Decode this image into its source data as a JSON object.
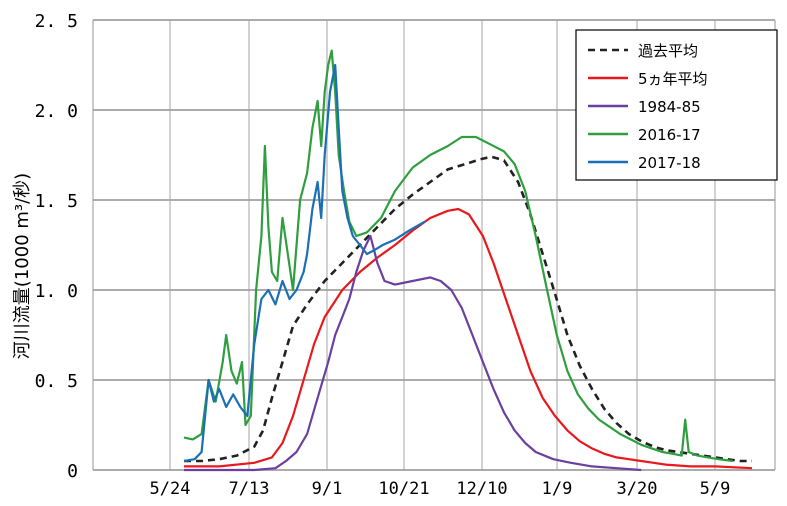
{
  "chart_data": {
    "type": "line",
    "ylabel": "河川流量(1000 m³/秒)",
    "xlabel": "",
    "ylim": [
      0,
      2.5
    ],
    "grid": true,
    "legend_position": "top-right",
    "x_ticks": [
      "5/24",
      "7/13",
      "9/1",
      "10/21",
      "12/10",
      "1/9",
      "3/20",
      "5/9"
    ],
    "y_ticks": [
      "0",
      "0. 5",
      "1. 0",
      "1. 5",
      "2. 0",
      "2. 5"
    ],
    "x_domain_days": [
      0,
      391
    ],
    "series": [
      {
        "name": "過去平均",
        "color": "#222222",
        "dash": true,
        "points": [
          [
            0,
            0.05
          ],
          [
            10,
            0.05
          ],
          [
            20,
            0.06
          ],
          [
            30,
            0.08
          ],
          [
            40,
            0.13
          ],
          [
            45,
            0.22
          ],
          [
            50,
            0.4
          ],
          [
            56,
            0.6
          ],
          [
            62,
            0.8
          ],
          [
            70,
            0.92
          ],
          [
            80,
            1.05
          ],
          [
            90,
            1.15
          ],
          [
            100,
            1.25
          ],
          [
            110,
            1.35
          ],
          [
            120,
            1.45
          ],
          [
            130,
            1.53
          ],
          [
            140,
            1.6
          ],
          [
            150,
            1.67
          ],
          [
            160,
            1.7
          ],
          [
            170,
            1.73
          ],
          [
            175,
            1.74
          ],
          [
            182,
            1.72
          ],
          [
            190,
            1.6
          ],
          [
            197,
            1.42
          ],
          [
            204,
            1.2
          ],
          [
            211,
            0.98
          ],
          [
            218,
            0.75
          ],
          [
            225,
            0.58
          ],
          [
            232,
            0.45
          ],
          [
            239,
            0.34
          ],
          [
            246,
            0.26
          ],
          [
            253,
            0.2
          ],
          [
            260,
            0.16
          ],
          [
            267,
            0.13
          ],
          [
            274,
            0.11
          ],
          [
            281,
            0.1
          ],
          [
            288,
            0.09
          ],
          [
            295,
            0.08
          ],
          [
            302,
            0.07
          ],
          [
            309,
            0.06
          ],
          [
            316,
            0.05
          ],
          [
            323,
            0.05
          ]
        ]
      },
      {
        "name": "5ヵ年平均",
        "color": "#e8191c",
        "dash": false,
        "points": [
          [
            0,
            0.02
          ],
          [
            20,
            0.02
          ],
          [
            40,
            0.04
          ],
          [
            50,
            0.07
          ],
          [
            56,
            0.15
          ],
          [
            62,
            0.3
          ],
          [
            68,
            0.5
          ],
          [
            74,
            0.7
          ],
          [
            80,
            0.85
          ],
          [
            90,
            1.0
          ],
          [
            100,
            1.1
          ],
          [
            110,
            1.18
          ],
          [
            120,
            1.25
          ],
          [
            130,
            1.33
          ],
          [
            140,
            1.4
          ],
          [
            150,
            1.44
          ],
          [
            156,
            1.45
          ],
          [
            162,
            1.42
          ],
          [
            170,
            1.3
          ],
          [
            176,
            1.15
          ],
          [
            183,
            0.95
          ],
          [
            190,
            0.75
          ],
          [
            197,
            0.55
          ],
          [
            204,
            0.4
          ],
          [
            211,
            0.3
          ],
          [
            218,
            0.22
          ],
          [
            225,
            0.16
          ],
          [
            232,
            0.12
          ],
          [
            239,
            0.09
          ],
          [
            246,
            0.07
          ],
          [
            253,
            0.06
          ],
          [
            260,
            0.05
          ],
          [
            267,
            0.04
          ],
          [
            274,
            0.03
          ],
          [
            288,
            0.02
          ],
          [
            302,
            0.02
          ],
          [
            323,
            0.01
          ]
        ]
      },
      {
        "name": "1984-85",
        "color": "#6b3fa0",
        "dash": false,
        "points": [
          [
            0,
            0.0
          ],
          [
            20,
            0.0
          ],
          [
            40,
            0.0
          ],
          [
            52,
            0.01
          ],
          [
            58,
            0.05
          ],
          [
            64,
            0.1
          ],
          [
            70,
            0.2
          ],
          [
            76,
            0.4
          ],
          [
            82,
            0.6
          ],
          [
            86,
            0.75
          ],
          [
            90,
            0.85
          ],
          [
            94,
            0.95
          ],
          [
            98,
            1.1
          ],
          [
            102,
            1.22
          ],
          [
            106,
            1.3
          ],
          [
            110,
            1.15
          ],
          [
            114,
            1.05
          ],
          [
            120,
            1.03
          ],
          [
            130,
            1.05
          ],
          [
            140,
            1.07
          ],
          [
            146,
            1.05
          ],
          [
            152,
            1.0
          ],
          [
            158,
            0.9
          ],
          [
            164,
            0.75
          ],
          [
            170,
            0.6
          ],
          [
            176,
            0.45
          ],
          [
            182,
            0.32
          ],
          [
            188,
            0.22
          ],
          [
            194,
            0.15
          ],
          [
            200,
            0.1
          ],
          [
            210,
            0.06
          ],
          [
            220,
            0.04
          ],
          [
            232,
            0.02
          ],
          [
            246,
            0.01
          ],
          [
            260,
            0.0
          ]
        ]
      },
      {
        "name": "2016-17",
        "color": "#2f9e3e",
        "dash": false,
        "points": [
          [
            0,
            0.18
          ],
          [
            5,
            0.17
          ],
          [
            10,
            0.2
          ],
          [
            14,
            0.5
          ],
          [
            18,
            0.38
          ],
          [
            22,
            0.6
          ],
          [
            24,
            0.75
          ],
          [
            27,
            0.55
          ],
          [
            30,
            0.48
          ],
          [
            33,
            0.6
          ],
          [
            35,
            0.25
          ],
          [
            38,
            0.3
          ],
          [
            41,
            1.0
          ],
          [
            44,
            1.3
          ],
          [
            46,
            1.8
          ],
          [
            48,
            1.35
          ],
          [
            50,
            1.1
          ],
          [
            53,
            1.05
          ],
          [
            56,
            1.4
          ],
          [
            59,
            1.2
          ],
          [
            62,
            1.0
          ],
          [
            66,
            1.5
          ],
          [
            70,
            1.65
          ],
          [
            73,
            1.9
          ],
          [
            76,
            2.05
          ],
          [
            78,
            1.8
          ],
          [
            80,
            2.1
          ],
          [
            82,
            2.25
          ],
          [
            84,
            2.33
          ],
          [
            86,
            2.1
          ],
          [
            88,
            1.75
          ],
          [
            91,
            1.55
          ],
          [
            94,
            1.38
          ],
          [
            98,
            1.3
          ],
          [
            104,
            1.32
          ],
          [
            112,
            1.4
          ],
          [
            120,
            1.55
          ],
          [
            130,
            1.68
          ],
          [
            140,
            1.75
          ],
          [
            150,
            1.8
          ],
          [
            158,
            1.85
          ],
          [
            166,
            1.85
          ],
          [
            174,
            1.81
          ],
          [
            182,
            1.77
          ],
          [
            188,
            1.7
          ],
          [
            194,
            1.55
          ],
          [
            200,
            1.3
          ],
          [
            206,
            1.02
          ],
          [
            212,
            0.75
          ],
          [
            218,
            0.55
          ],
          [
            224,
            0.42
          ],
          [
            230,
            0.34
          ],
          [
            236,
            0.28
          ],
          [
            242,
            0.24
          ],
          [
            248,
            0.2
          ],
          [
            254,
            0.17
          ],
          [
            260,
            0.14
          ],
          [
            266,
            0.12
          ],
          [
            272,
            0.1
          ],
          [
            278,
            0.09
          ],
          [
            283,
            0.08
          ],
          [
            285,
            0.28
          ],
          [
            287,
            0.1
          ],
          [
            292,
            0.08
          ],
          [
            298,
            0.07
          ],
          [
            304,
            0.06
          ],
          [
            312,
            0.05
          ]
        ]
      },
      {
        "name": "2017-18",
        "color": "#1a6fb5",
        "dash": false,
        "points": [
          [
            0,
            0.05
          ],
          [
            6,
            0.06
          ],
          [
            10,
            0.1
          ],
          [
            14,
            0.5
          ],
          [
            17,
            0.38
          ],
          [
            20,
            0.45
          ],
          [
            24,
            0.35
          ],
          [
            28,
            0.42
          ],
          [
            32,
            0.35
          ],
          [
            36,
            0.3
          ],
          [
            40,
            0.7
          ],
          [
            44,
            0.95
          ],
          [
            48,
            1.0
          ],
          [
            52,
            0.92
          ],
          [
            56,
            1.05
          ],
          [
            60,
            0.95
          ],
          [
            64,
            1.0
          ],
          [
            68,
            1.1
          ],
          [
            70,
            1.2
          ],
          [
            73,
            1.45
          ],
          [
            76,
            1.6
          ],
          [
            78,
            1.4
          ],
          [
            80,
            1.75
          ],
          [
            83,
            2.1
          ],
          [
            86,
            2.25
          ],
          [
            88,
            1.9
          ],
          [
            90,
            1.55
          ],
          [
            93,
            1.4
          ],
          [
            96,
            1.3
          ],
          [
            100,
            1.25
          ],
          [
            104,
            1.2
          ],
          [
            108,
            1.22
          ],
          [
            113,
            1.25
          ],
          [
            120,
            1.28
          ],
          [
            128,
            1.33
          ],
          [
            137,
            1.38
          ]
        ]
      }
    ]
  }
}
